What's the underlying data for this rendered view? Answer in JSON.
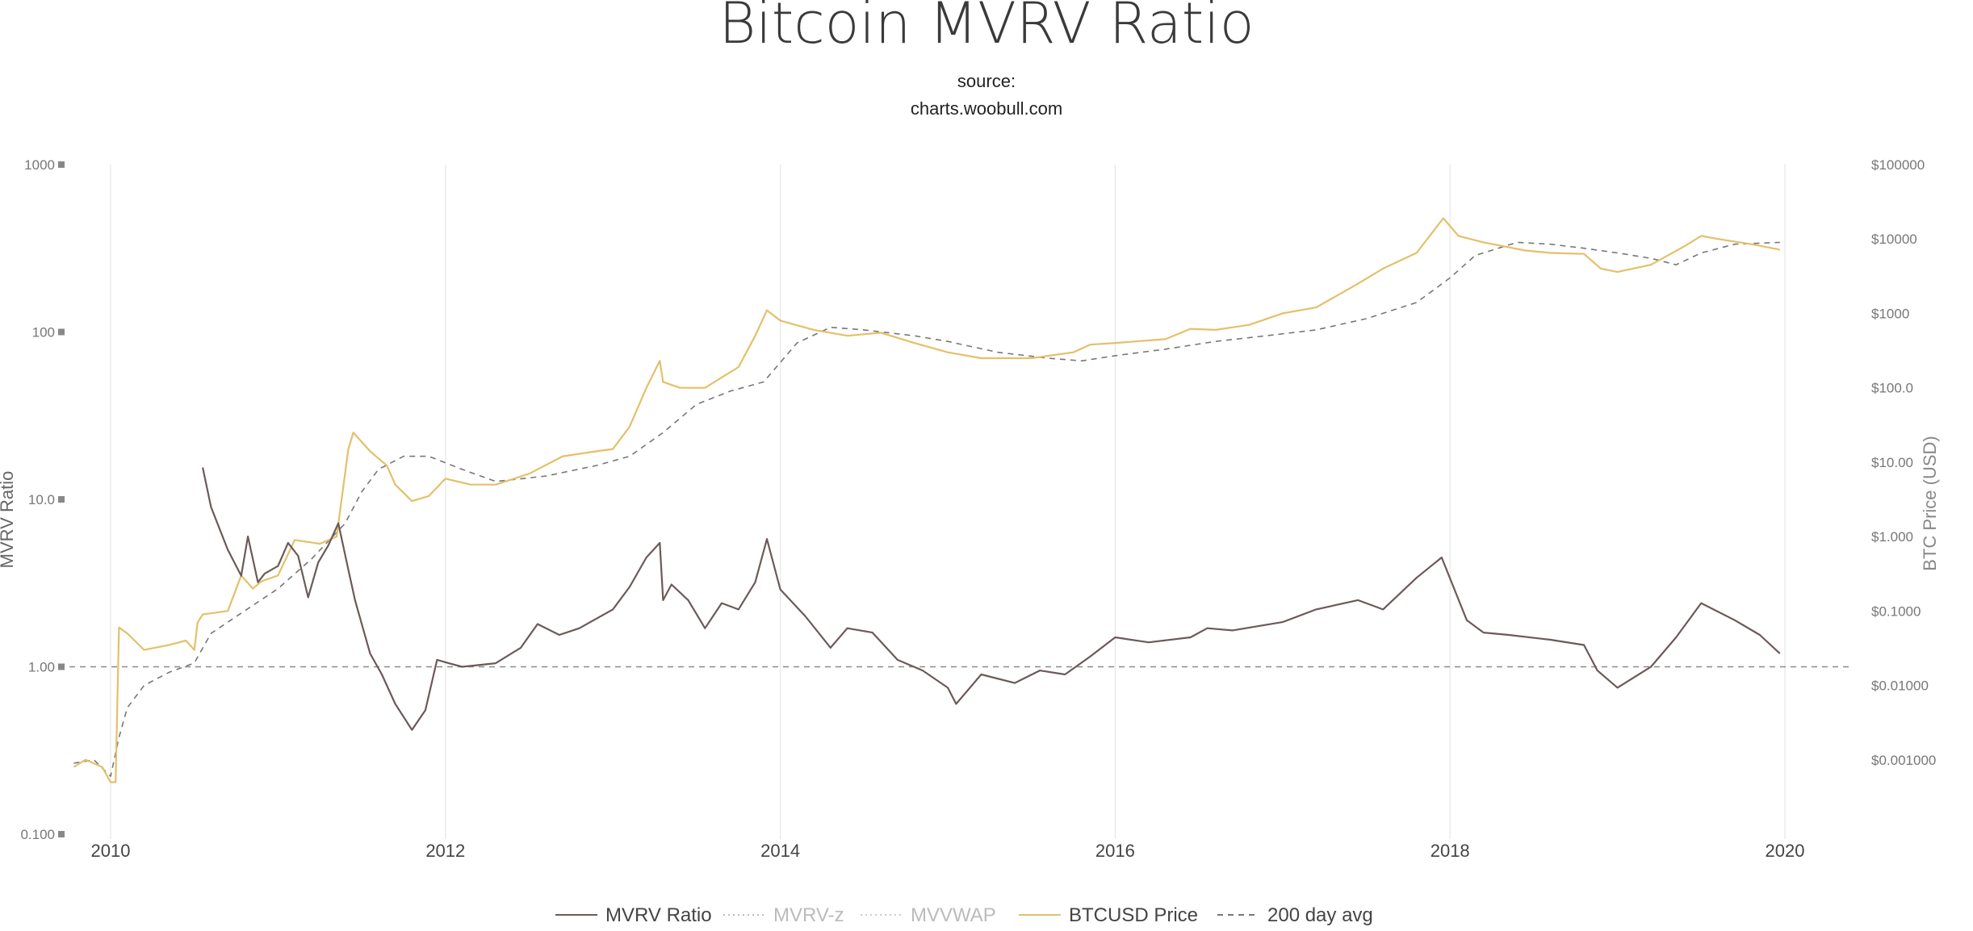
{
  "title": "Bitcoin MVRV Ratio",
  "subtitle_line1": "source:",
  "subtitle_line2": "charts.woobull.com",
  "colors": {
    "mvrv": "#6b5a58",
    "price": "#e3c06a",
    "avg200": "#777777",
    "mvrv_z": "#bbbbbb",
    "mvvwap": "#cccccc",
    "reference": "#8a8a8a",
    "grid": "#e6e6e6"
  },
  "legend": [
    {
      "label": "MVRV Ratio",
      "style": "solid",
      "color": "#6b5a58",
      "dimmed": false
    },
    {
      "label": "MVRV-z",
      "style": "dotted",
      "color": "#bbbbbb",
      "dimmed": true
    },
    {
      "label": "MVVWAP",
      "style": "dotted",
      "color": "#cccccc",
      "dimmed": true
    },
    {
      "label": "BTCUSD Price",
      "style": "solid",
      "color": "#e3c06a",
      "dimmed": false
    },
    {
      "label": "200 day avg",
      "style": "dashed",
      "color": "#777777",
      "dimmed": false
    }
  ],
  "chart_data": {
    "type": "line",
    "title": "Bitcoin MVRV Ratio",
    "subtitle": "source: charts.woobull.com",
    "x_axis": {
      "min": 2009.75,
      "max": 2020.45,
      "ticks": [
        2010,
        2012,
        2014,
        2016,
        2018,
        2020
      ],
      "tick_labels": [
        "2010",
        "2012",
        "2014",
        "2016",
        "2018",
        "2020"
      ],
      "grid": true
    },
    "y_left": {
      "label": "MVRV Ratio",
      "scale": "log",
      "min": 0.1,
      "max": 1000,
      "ticks": [
        0.1,
        1,
        10,
        100,
        1000
      ],
      "tick_labels": [
        "0.100",
        "1.00",
        "10.0",
        "100",
        "1000"
      ]
    },
    "y_right": {
      "label": "BTC Price (USD)",
      "scale": "log",
      "min": 0.0001,
      "max": 100000,
      "ticks": [
        0.001,
        0.01,
        0.1,
        1,
        10,
        100,
        1000,
        10000,
        100000
      ],
      "tick_labels": [
        "$0.001000",
        "$0.01000",
        "$0.1000",
        "$1.000",
        "$10.00",
        "$100.0",
        "$1000",
        "$10000",
        "$100000"
      ]
    },
    "reference_line": {
      "axis": "left",
      "y": 1.0,
      "style": "dashed"
    },
    "legend_position": "bottom-center",
    "series": [
      {
        "name": "MVRV Ratio",
        "axis": "left",
        "style": "solid",
        "x": [
          2010.55,
          2010.6,
          2010.7,
          2010.78,
          2010.82,
          2010.88,
          2010.92,
          2011.0,
          2011.06,
          2011.12,
          2011.18,
          2011.24,
          2011.3,
          2011.36,
          2011.42,
          2011.46,
          2011.5,
          2011.55,
          2011.62,
          2011.7,
          2011.8,
          2011.88,
          2011.95,
          2012.02,
          2012.1,
          2012.3,
          2012.45,
          2012.55,
          2012.68,
          2012.8,
          2013.0,
          2013.1,
          2013.2,
          2013.28,
          2013.3,
          2013.35,
          2013.45,
          2013.55,
          2013.65,
          2013.75,
          2013.85,
          2013.92,
          2014.0,
          2014.15,
          2014.3,
          2014.4,
          2014.55,
          2014.7,
          2014.85,
          2015.0,
          2015.05,
          2015.2,
          2015.4,
          2015.55,
          2015.7,
          2015.85,
          2016.0,
          2016.2,
          2016.45,
          2016.55,
          2016.7,
          2017.0,
          2017.2,
          2017.45,
          2017.6,
          2017.8,
          2017.95,
          2018.1,
          2018.2,
          2018.35,
          2018.6,
          2018.8,
          2018.88,
          2019.0,
          2019.2,
          2019.35,
          2019.5,
          2019.7,
          2019.85,
          2019.97
        ],
        "y": [
          15.5,
          9.0,
          5.0,
          3.5,
          6.0,
          3.2,
          3.6,
          4.0,
          5.5,
          4.6,
          2.6,
          4.2,
          5.3,
          7.2,
          3.8,
          2.5,
          1.8,
          1.2,
          0.9,
          0.6,
          0.42,
          0.55,
          1.1,
          1.05,
          1.0,
          1.05,
          1.3,
          1.8,
          1.55,
          1.7,
          2.2,
          3.0,
          4.5,
          5.5,
          2.5,
          3.1,
          2.5,
          1.7,
          2.4,
          2.2,
          3.2,
          5.8,
          2.9,
          2.0,
          1.3,
          1.7,
          1.6,
          1.1,
          0.95,
          0.75,
          0.6,
          0.9,
          0.8,
          0.95,
          0.9,
          1.15,
          1.5,
          1.4,
          1.5,
          1.7,
          1.65,
          1.85,
          2.2,
          2.5,
          2.2,
          3.4,
          4.5,
          1.9,
          1.6,
          1.55,
          1.45,
          1.35,
          0.95,
          0.75,
          1.0,
          1.5,
          2.4,
          1.9,
          1.55,
          1.2
        ]
      },
      {
        "name": "BTCUSD Price",
        "axis": "right",
        "style": "solid",
        "x": [
          2009.78,
          2009.85,
          2009.95,
          2010.0,
          2010.03,
          2010.05,
          2010.1,
          2010.2,
          2010.35,
          2010.45,
          2010.5,
          2010.52,
          2010.55,
          2010.7,
          2010.78,
          2010.85,
          2010.9,
          2011.0,
          2011.1,
          2011.25,
          2011.35,
          2011.42,
          2011.45,
          2011.55,
          2011.65,
          2011.7,
          2011.8,
          2011.9,
          2012.0,
          2012.15,
          2012.3,
          2012.5,
          2012.7,
          2012.9,
          2013.0,
          2013.1,
          2013.2,
          2013.28,
          2013.3,
          2013.4,
          2013.55,
          2013.75,
          2013.85,
          2013.92,
          2014.0,
          2014.2,
          2014.4,
          2014.6,
          2014.8,
          2015.0,
          2015.2,
          2015.5,
          2015.75,
          2015.85,
          2016.0,
          2016.3,
          2016.45,
          2016.6,
          2016.8,
          2017.0,
          2017.2,
          2017.45,
          2017.6,
          2017.8,
          2017.96,
          2018.05,
          2018.2,
          2018.45,
          2018.6,
          2018.8,
          2018.9,
          2019.0,
          2019.2,
          2019.4,
          2019.5,
          2019.6,
          2019.8,
          2019.97
        ],
        "y": [
          0.0008,
          0.001,
          0.0008,
          0.0005,
          0.0005,
          0.06,
          0.05,
          0.03,
          0.035,
          0.04,
          0.03,
          0.07,
          0.09,
          0.1,
          0.3,
          0.2,
          0.25,
          0.3,
          0.9,
          0.8,
          1.0,
          15,
          25,
          14,
          9,
          5,
          3,
          3.5,
          6,
          5,
          5,
          7,
          12,
          14,
          15,
          30,
          100,
          230,
          120,
          100,
          100,
          190,
          500,
          1100,
          800,
          600,
          500,
          550,
          400,
          300,
          250,
          250,
          300,
          380,
          400,
          450,
          620,
          600,
          700,
          1000,
          1200,
          2500,
          4000,
          6500,
          19000,
          11000,
          9000,
          7000,
          6500,
          6300,
          4000,
          3600,
          4500,
          8000,
          11000,
          10000,
          8500,
          7200
        ]
      },
      {
        "name": "200 day avg",
        "axis": "right",
        "style": "dashed",
        "x": [
          2009.78,
          2009.9,
          2010.0,
          2010.05,
          2010.1,
          2010.2,
          2010.35,
          2010.5,
          2010.6,
          2010.8,
          2011.0,
          2011.2,
          2011.4,
          2011.5,
          2011.6,
          2011.75,
          2011.9,
          2012.1,
          2012.3,
          2012.6,
          2012.9,
          2013.1,
          2013.3,
          2013.5,
          2013.7,
          2013.9,
          2014.1,
          2014.3,
          2014.5,
          2014.8,
          2015.0,
          2015.3,
          2015.6,
          2015.8,
          2016.0,
          2016.3,
          2016.6,
          2016.9,
          2017.2,
          2017.5,
          2017.8,
          2018.0,
          2018.15,
          2018.4,
          2018.6,
          2018.8,
          2019.0,
          2019.2,
          2019.35,
          2019.5,
          2019.7,
          2019.97
        ],
        "y": [
          0.0009,
          0.001,
          0.0006,
          0.002,
          0.005,
          0.01,
          0.015,
          0.02,
          0.05,
          0.1,
          0.2,
          0.5,
          1.5,
          4,
          8,
          12,
          12,
          8,
          5.5,
          6.5,
          9,
          12,
          25,
          60,
          90,
          120,
          400,
          650,
          600,
          500,
          420,
          300,
          250,
          230,
          270,
          330,
          420,
          500,
          600,
          850,
          1400,
          3000,
          6000,
          9000,
          8500,
          7500,
          6500,
          5500,
          4500,
          6500,
          8500,
          9000
        ]
      }
    ]
  }
}
